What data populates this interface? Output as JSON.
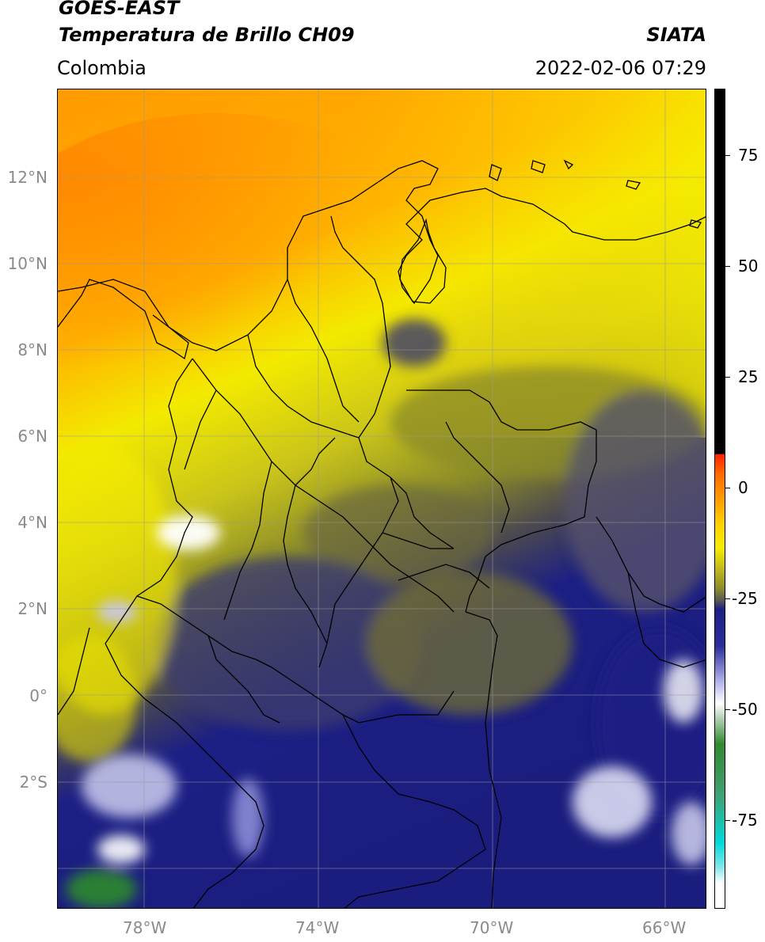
{
  "header": {
    "satellite": "GOES-EAST",
    "product": "Temperatura de Brillo CH09",
    "region": "Colombia",
    "agency": "SIATA",
    "timestamp": "2022-02-06 07:29"
  },
  "map": {
    "lat_labels": [
      "12°N",
      "10°N",
      "8°N",
      "6°N",
      "4°N",
      "2°N",
      "0°",
      "2°S"
    ],
    "lon_labels": [
      "78°W",
      "74°W",
      "70°W",
      "66°W"
    ],
    "extent": {
      "lon_min": -80.0,
      "lon_max": -65.0,
      "lat_min": -4.2,
      "lat_max": 14.0
    }
  },
  "colorbar": {
    "tick_labels": [
      "75",
      "50",
      "25",
      "0",
      "-25",
      "-50",
      "-75"
    ],
    "colors": {
      "top": "#000000",
      "hot": "#ff2200",
      "orange": "#ff9a00",
      "yellow": "#f6ec00",
      "olive": "#8b8b2a",
      "navy": "#1c1f84",
      "lavender": "#a8a8e8",
      "white": "#ffffff",
      "green": "#2f8a2f",
      "teal": "#00d8d8"
    }
  },
  "chart_data": {
    "type": "heatmap",
    "title": "Temperatura de Brillo CH09",
    "xlabel": "",
    "ylabel": "",
    "xlim": [
      -80,
      -65
    ],
    "ylim": [
      -4.2,
      14
    ],
    "colorbar_range": [
      -95,
      90
    ]
  }
}
